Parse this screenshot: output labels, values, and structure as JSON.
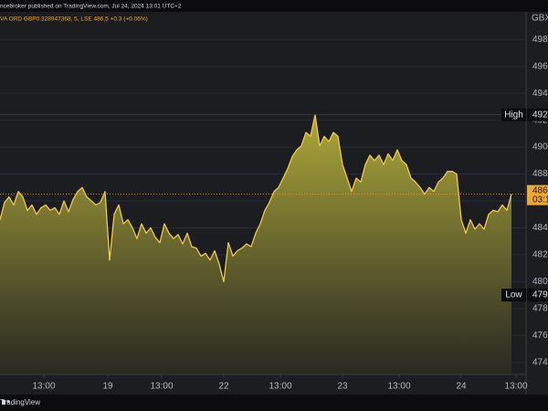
{
  "chart_data": {
    "type": "area",
    "title": "ncebroker published on TradingView.com, Jul 24, 2024 13:01 UTC+2",
    "subtitle": "VA ORD GBP0.328947368, 5, LSE 486.5 +0.3 (+0.06%)",
    "currency": "GBX",
    "brand": "TradingView",
    "color": "#f2c94c",
    "fill_color": "#a8a43a",
    "values": [
      484.6,
      485.9,
      486.3,
      485.7,
      486.7,
      486.3,
      485.3,
      485.7,
      485.0,
      485.5,
      485.7,
      485.3,
      485.5,
      485.0,
      486.0,
      485.2,
      486.1,
      486.7,
      487.0,
      486.3,
      486.0,
      485.7,
      485.9,
      486.7,
      481.6,
      485.0,
      485.7,
      484.3,
      484.6,
      484.0,
      483.2,
      484.3,
      483.6,
      484.0,
      483.3,
      482.9,
      484.3,
      483.6,
      483.2,
      483.5,
      482.8,
      483.6,
      482.6,
      482.5,
      481.9,
      482.1,
      481.6,
      482.3,
      481.3,
      480.0,
      482.9,
      481.9,
      482.3,
      482.5,
      482.8,
      482.6,
      483.6,
      484.3,
      485.3,
      485.9,
      486.7,
      487.0,
      487.7,
      488.4,
      489.3,
      489.8,
      490.1,
      491.1,
      490.8,
      492.4,
      490.1,
      490.8,
      490.4,
      491.1,
      490.8,
      488.7,
      487.7,
      486.7,
      487.7,
      487.4,
      488.7,
      489.4,
      489.0,
      489.4,
      488.7,
      489.5,
      489.0,
      489.8,
      489.0,
      488.7,
      487.7,
      487.4,
      487.0,
      486.5,
      487.0,
      486.7,
      487.4,
      487.7,
      488.2,
      488.2,
      488.0,
      484.6,
      483.6,
      484.6,
      483.9,
      484.3,
      483.9,
      485.0,
      485.3,
      485.2,
      485.7,
      485.3,
      486.5
    ],
    "xlim": [
      0,
      115
    ],
    "xticks": [
      {
        "value": 9.6,
        "label": "13:00"
      },
      {
        "value": 23.6,
        "label": "19"
      },
      {
        "value": 35.4,
        "label": "13:00"
      },
      {
        "value": 49,
        "label": "22"
      },
      {
        "value": 61.4,
        "label": "13:00"
      },
      {
        "value": 75,
        "label": "23"
      },
      {
        "value": 87.4,
        "label": "13:00"
      },
      {
        "value": 101,
        "label": "24"
      },
      {
        "value": 113,
        "label": "13:00"
      }
    ],
    "ylim": [
      473.1,
      498.9
    ],
    "yticks": [
      {
        "value": 474,
        "label": "474.0"
      },
      {
        "value": 476,
        "label": "476.0"
      },
      {
        "value": 478,
        "label": "478.0"
      },
      {
        "value": 480,
        "label": "480.0"
      },
      {
        "value": 482,
        "label": "482.0"
      },
      {
        "value": 484,
        "label": "484.0"
      },
      {
        "value": 486,
        "label": "486.0"
      },
      {
        "value": 488,
        "label": "488.0"
      },
      {
        "value": 490,
        "label": "490.0"
      },
      {
        "value": 492,
        "label": "492.0"
      },
      {
        "value": 494,
        "label": "494.0"
      },
      {
        "value": 496,
        "label": "496.0"
      },
      {
        "value": 498,
        "label": "498.0"
      }
    ],
    "grid": true,
    "high": {
      "label": "High",
      "value": 492.4,
      "value_label": "492.4"
    },
    "low": {
      "label": "Low",
      "value": 479.0,
      "value_label": "479.0"
    },
    "last": {
      "value": 486.5,
      "value_label": "486.5",
      "countdown": "03:1"
    }
  }
}
